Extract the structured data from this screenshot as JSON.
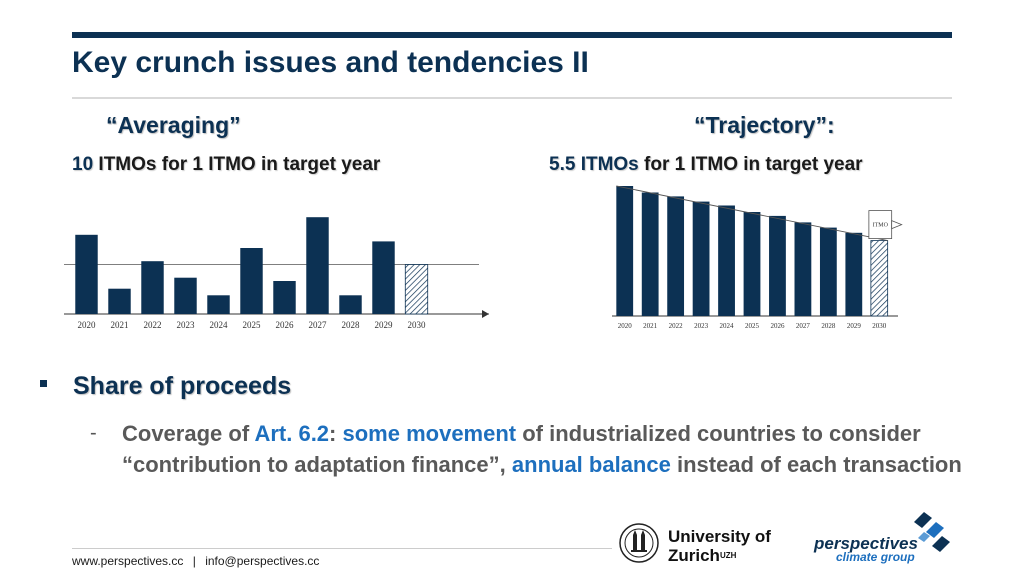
{
  "slide": {
    "title": "Key crunch issues and tendencies II"
  },
  "left_panel": {
    "heading": "“Averaging”",
    "count": "10",
    "rest": " ITMOs for 1 ITMO in target year"
  },
  "right_panel": {
    "heading": "“Trajectory”:",
    "count": "5.5 ITMOs",
    "rest": " for 1 ITMO in target year"
  },
  "chart_data": [
    {
      "type": "bar",
      "categories": [
        "2020",
        "2021",
        "2022",
        "2023",
        "2024",
        "2025",
        "2026",
        "2027",
        "2028",
        "2029",
        "2030"
      ],
      "values": [
        72,
        23,
        48,
        33,
        17,
        60,
        30,
        88,
        17,
        66,
        45
      ],
      "average_line": 45,
      "target_year": "2030",
      "ylim": [
        0,
        100
      ],
      "colors": {
        "bar": "#0c3153",
        "target_hatch": "#0c3153"
      }
    },
    {
      "type": "bar",
      "categories": [
        "2020",
        "2021",
        "2022",
        "2023",
        "2024",
        "2025",
        "2026",
        "2027",
        "2028",
        "2029",
        "2030"
      ],
      "values": [
        100,
        95,
        92,
        88,
        85,
        80,
        77,
        72,
        68,
        64,
        58
      ],
      "trajectory_start": 100,
      "trajectory_end": 58,
      "target_year": "2030",
      "callout_label": "ITMO",
      "ylim": [
        0,
        100
      ],
      "colors": {
        "bar": "#0c3153",
        "target_hatch": "#0c3153"
      }
    }
  ],
  "bullet": {
    "heading": "Share of proceeds",
    "dash": "-",
    "line_parts": [
      {
        "text": "Coverage of ",
        "style": "plain"
      },
      {
        "text": "Art. 6.2",
        "style": "blue"
      },
      {
        "text": ": ",
        "style": "plain"
      },
      {
        "text": "some movement",
        "style": "blue"
      },
      {
        "text": " of industrialized countries to consider “contribution to adaptation finance”, ",
        "style": "plain"
      },
      {
        "text": "annual balance",
        "style": "blue"
      },
      {
        "text": " instead of each transaction",
        "style": "plain"
      }
    ]
  },
  "footer": {
    "website": "www.perspectives.cc",
    "separator": "|",
    "email": "info@perspectives.cc"
  },
  "logos": {
    "uzh_line1": "University of",
    "uzh_line2": "Zurich",
    "uzh_sup": "UZH",
    "persp_name": "perspectives",
    "persp_sub": "climate group"
  },
  "colors": {
    "navy": "#0c3153",
    "blue_highlight": "#1d6fbe",
    "body_gray": "#595959"
  }
}
